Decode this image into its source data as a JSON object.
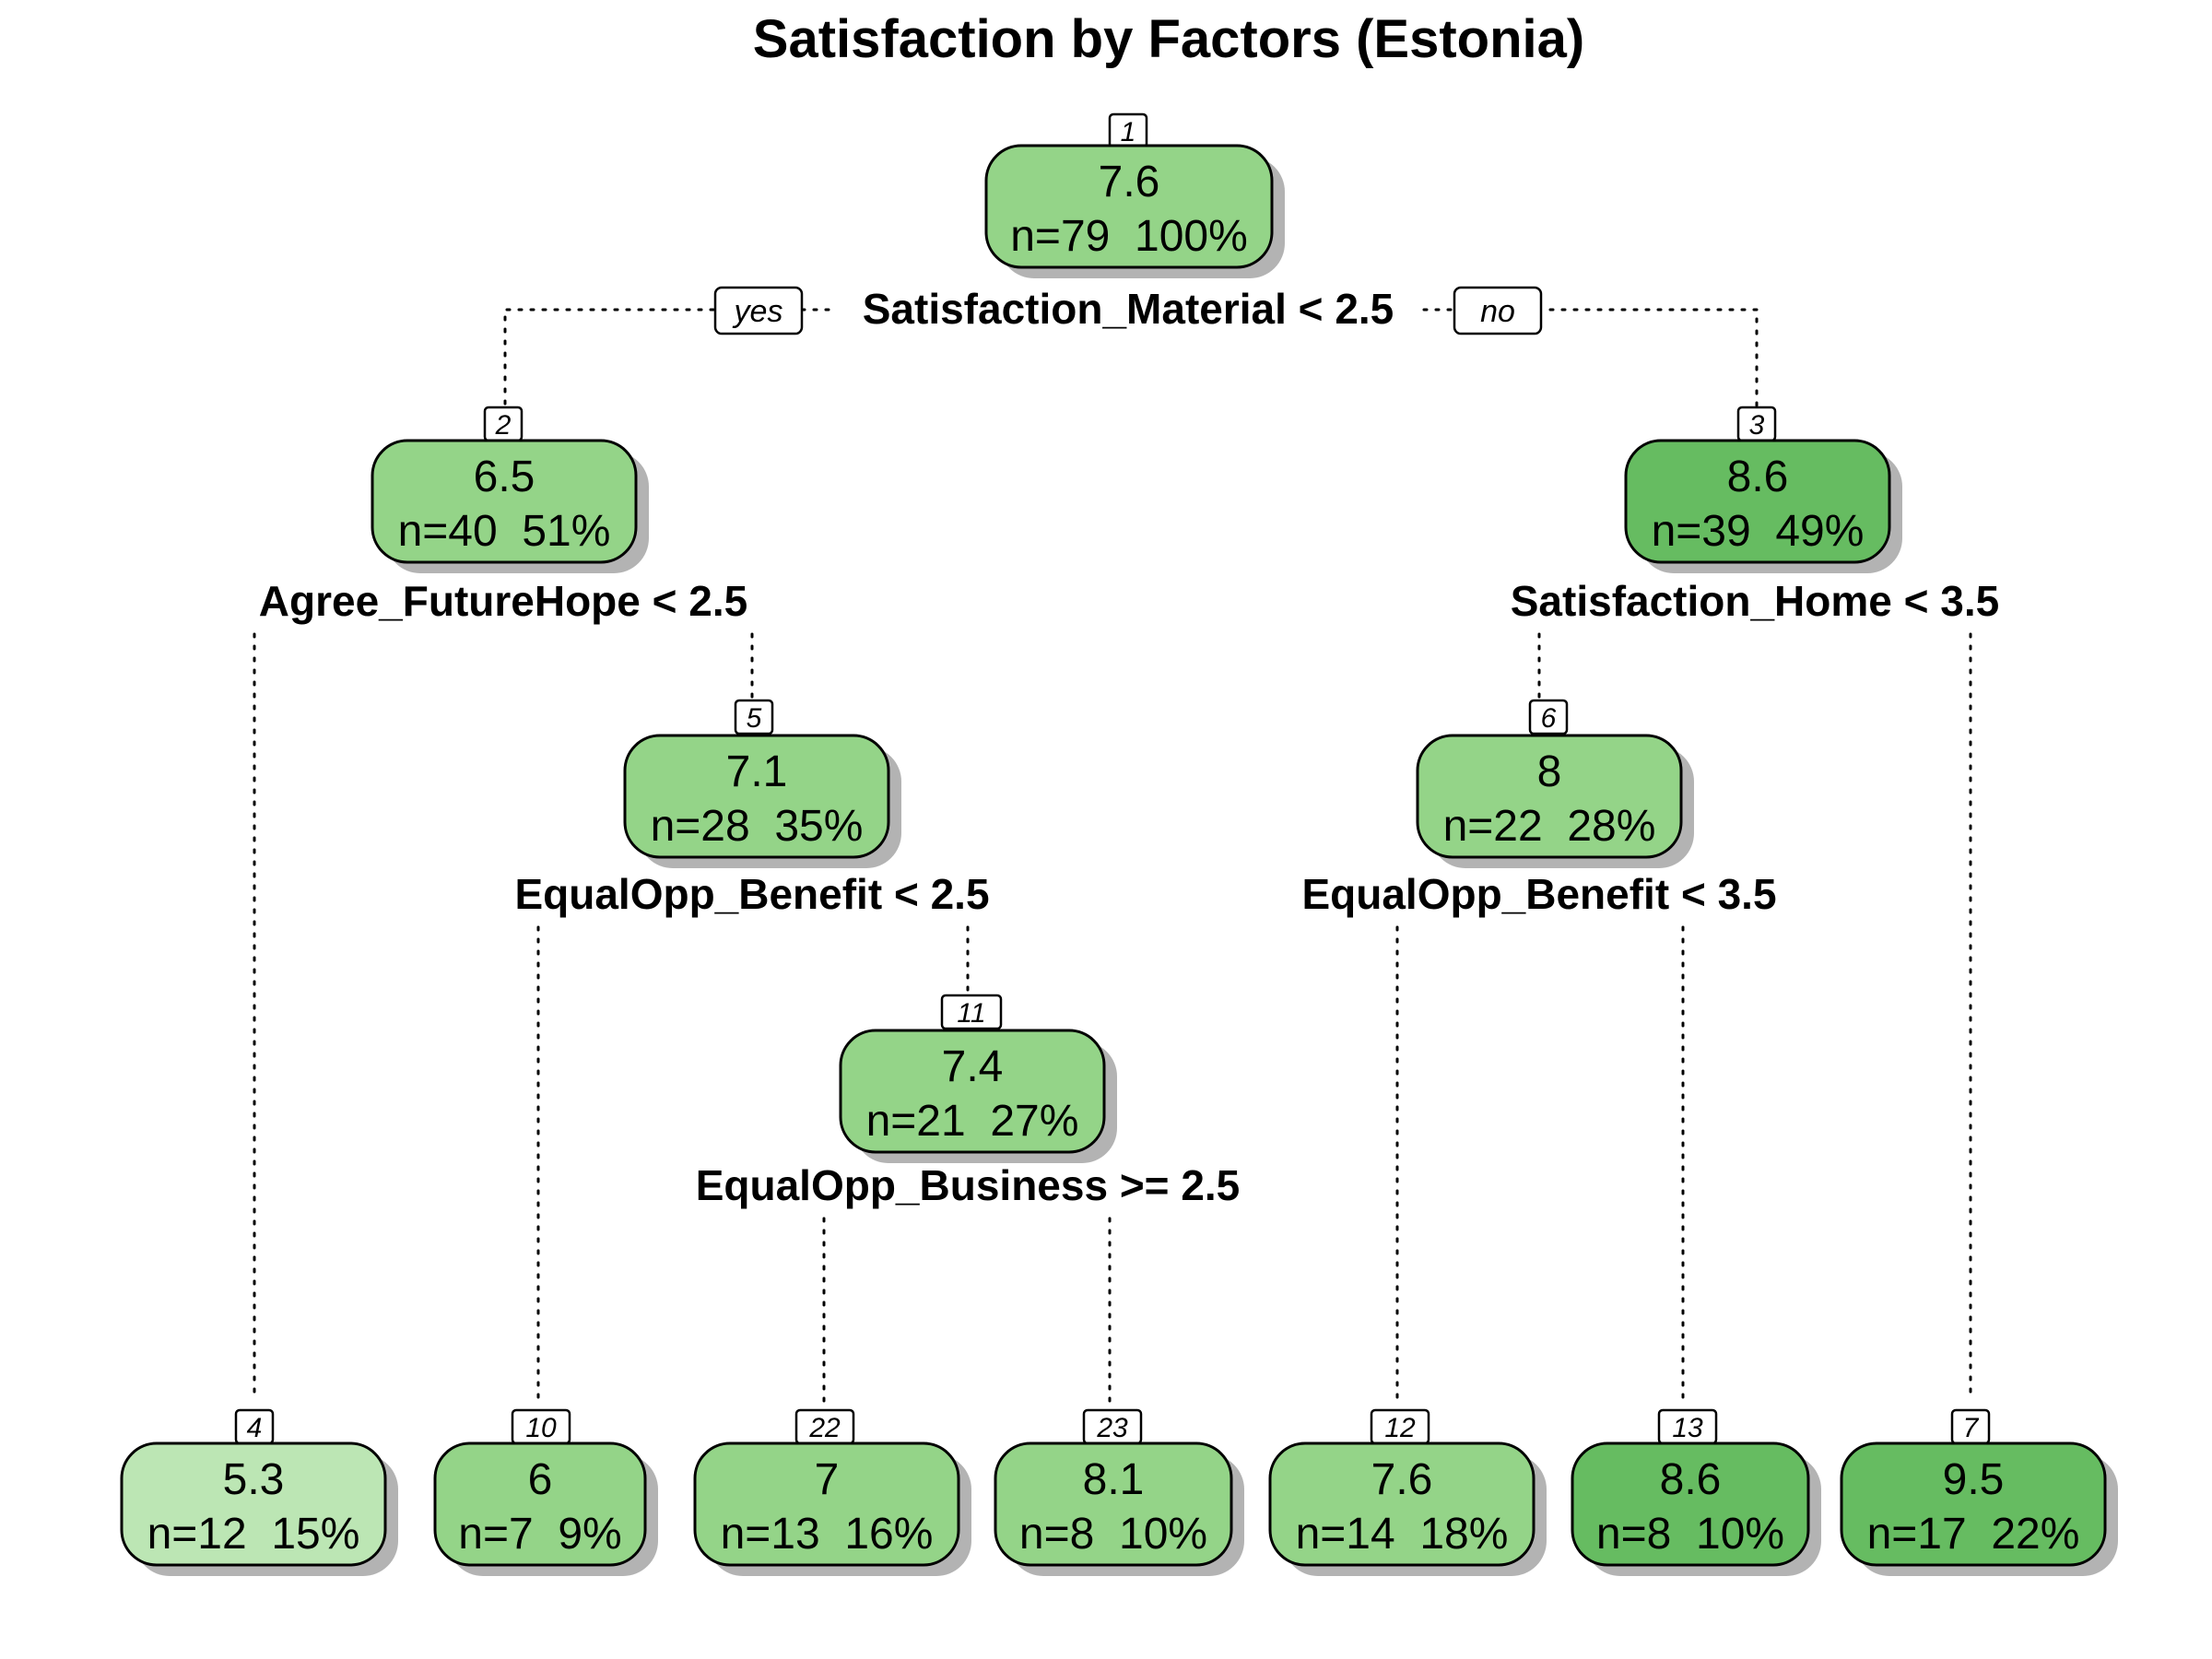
{
  "title": "Satisfaction by Factors (Estonia)",
  "labels": {
    "yes": "yes",
    "no": "no"
  },
  "colors": {
    "light": "#bce6b4",
    "mid": "#94d488",
    "dark": "#66bc61",
    "shadow": "#b3b3b3"
  },
  "splits": {
    "s1": "Satisfaction_Material < 2.5",
    "s2": "Agree_FutureHope < 2.5",
    "s3": "Satisfaction_Home < 3.5",
    "s5": "EqualOpp_Benefit < 2.5",
    "s6": "EqualOpp_Benefit < 3.5",
    "s11": "EqualOpp_Business >= 2.5"
  },
  "nodes": {
    "n1": {
      "id": "1",
      "value": "7.6",
      "info": "n=79  100%",
      "shade": "mid"
    },
    "n2": {
      "id": "2",
      "value": "6.5",
      "info": "n=40  51%",
      "shade": "mid"
    },
    "n3": {
      "id": "3",
      "value": "8.6",
      "info": "n=39  49%",
      "shade": "dark"
    },
    "n5": {
      "id": "5",
      "value": "7.1",
      "info": "n=28  35%",
      "shade": "mid"
    },
    "n6": {
      "id": "6",
      "value": "8",
      "info": "n=22  28%",
      "shade": "mid"
    },
    "n11": {
      "id": "11",
      "value": "7.4",
      "info": "n=21  27%",
      "shade": "mid"
    },
    "n4": {
      "id": "4",
      "value": "5.3",
      "info": "n=12  15%",
      "shade": "light"
    },
    "n10": {
      "id": "10",
      "value": "6",
      "info": "n=7  9%",
      "shade": "mid"
    },
    "n22": {
      "id": "22",
      "value": "7",
      "info": "n=13  16%",
      "shade": "mid"
    },
    "n23": {
      "id": "23",
      "value": "8.1",
      "info": "n=8  10%",
      "shade": "mid"
    },
    "n12": {
      "id": "12",
      "value": "7.6",
      "info": "n=14  18%",
      "shade": "mid"
    },
    "n13": {
      "id": "13",
      "value": "8.6",
      "info": "n=8  10%",
      "shade": "dark"
    },
    "n7": {
      "id": "7",
      "value": "9.5",
      "info": "n=17  22%",
      "shade": "dark"
    }
  }
}
